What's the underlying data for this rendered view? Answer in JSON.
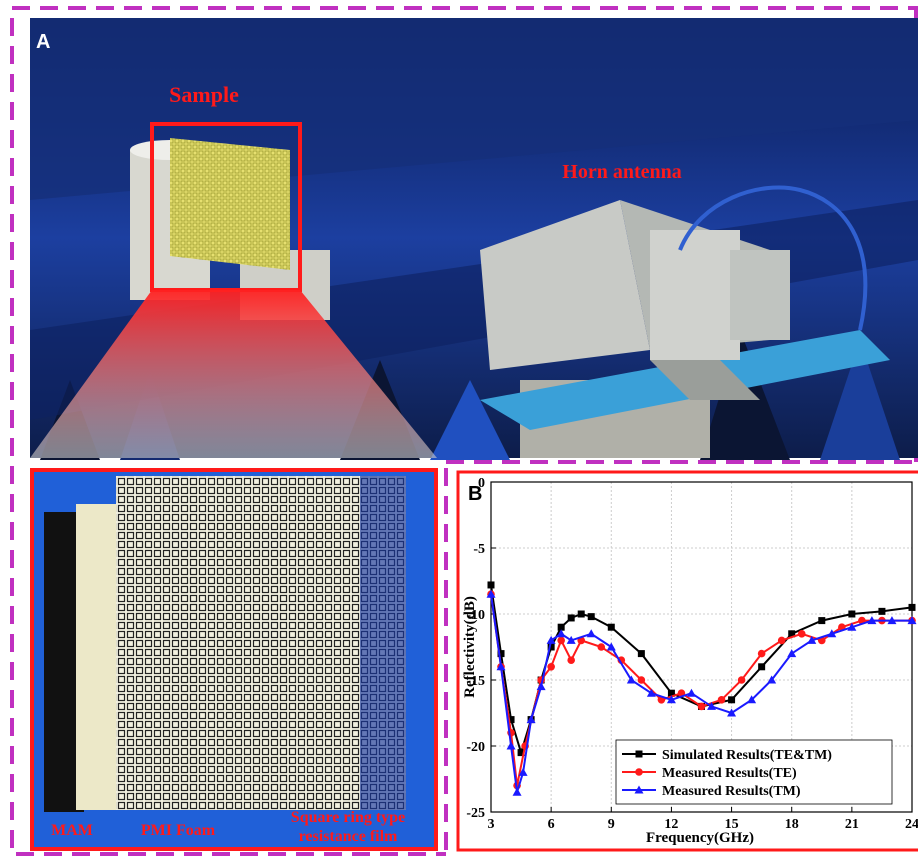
{
  "panel_a": {
    "label": "A",
    "sample_label": "Sample",
    "horn_label": "Horn antenna"
  },
  "inset": {
    "labels": [
      "MAM",
      "PMI Foam"
    ],
    "film_label": [
      "Square ring type",
      "resistance film"
    ]
  },
  "chart_data": {
    "type": "line",
    "panel_label": "B",
    "x_label": "Frequency(GHz)",
    "y_label": "Reflectivity(dB)",
    "xlim": [
      3,
      24
    ],
    "ylim": [
      -25,
      0
    ],
    "xticks": [
      3,
      6,
      9,
      12,
      15,
      18,
      21,
      24
    ],
    "yticks": [
      0,
      -5,
      -10,
      -15,
      -20,
      -25
    ],
    "grid": true,
    "legend": "lower right",
    "series": [
      {
        "name": "Simulated Results(TE&TM)",
        "color": "#000000",
        "marker": "square",
        "x": [
          3,
          3.5,
          4,
          4.5,
          5,
          5.5,
          6,
          6.5,
          7,
          7.5,
          8,
          9,
          10.5,
          12,
          13.5,
          15,
          16.5,
          18,
          19.5,
          21,
          22.5,
          24
        ],
        "values": [
          -7.8,
          -13,
          -18,
          -20.5,
          -18,
          -15,
          -12.5,
          -11,
          -10.3,
          -10,
          -10.2,
          -11,
          -13,
          -16,
          -17,
          -16.5,
          -14,
          -11.5,
          -10.5,
          -10,
          -9.8,
          -9.5
        ]
      },
      {
        "name": "Measured Results(TE)",
        "color": "#ff1a1a",
        "marker": "circle",
        "x": [
          3,
          3.5,
          4,
          4.3,
          4.7,
          5.5,
          6,
          6.5,
          7,
          7.5,
          8.5,
          9.5,
          10.5,
          11.5,
          12.5,
          13.5,
          14.5,
          15.5,
          16.5,
          17.5,
          18.5,
          19.5,
          20.5,
          21.5,
          22.5,
          24
        ],
        "values": [
          -8.5,
          -14,
          -19,
          -23,
          -20,
          -15,
          -14,
          -12,
          -13.5,
          -12,
          -12.5,
          -13.5,
          -15,
          -16.5,
          -16,
          -17,
          -16.5,
          -15,
          -13,
          -12,
          -11.5,
          -12,
          -11,
          -10.5,
          -10.5,
          -10.5
        ]
      },
      {
        "name": "Measured Results(TM)",
        "color": "#1a1aff",
        "marker": "triangle",
        "x": [
          3,
          3.5,
          4,
          4.3,
          4.6,
          5,
          5.5,
          6,
          6.5,
          7,
          8,
          9,
          10,
          11,
          12,
          13,
          14,
          15,
          16,
          17,
          18,
          19,
          20,
          21,
          22,
          23,
          24
        ],
        "values": [
          -8.5,
          -14,
          -20,
          -23.5,
          -22,
          -18,
          -15.5,
          -12,
          -11.5,
          -12,
          -11.5,
          -12.5,
          -15,
          -16,
          -16.5,
          -16,
          -17,
          -17.5,
          -16.5,
          -15,
          -13,
          -12,
          -11.5,
          -11,
          -10.5,
          -10.5,
          -10.5
        ]
      }
    ]
  }
}
